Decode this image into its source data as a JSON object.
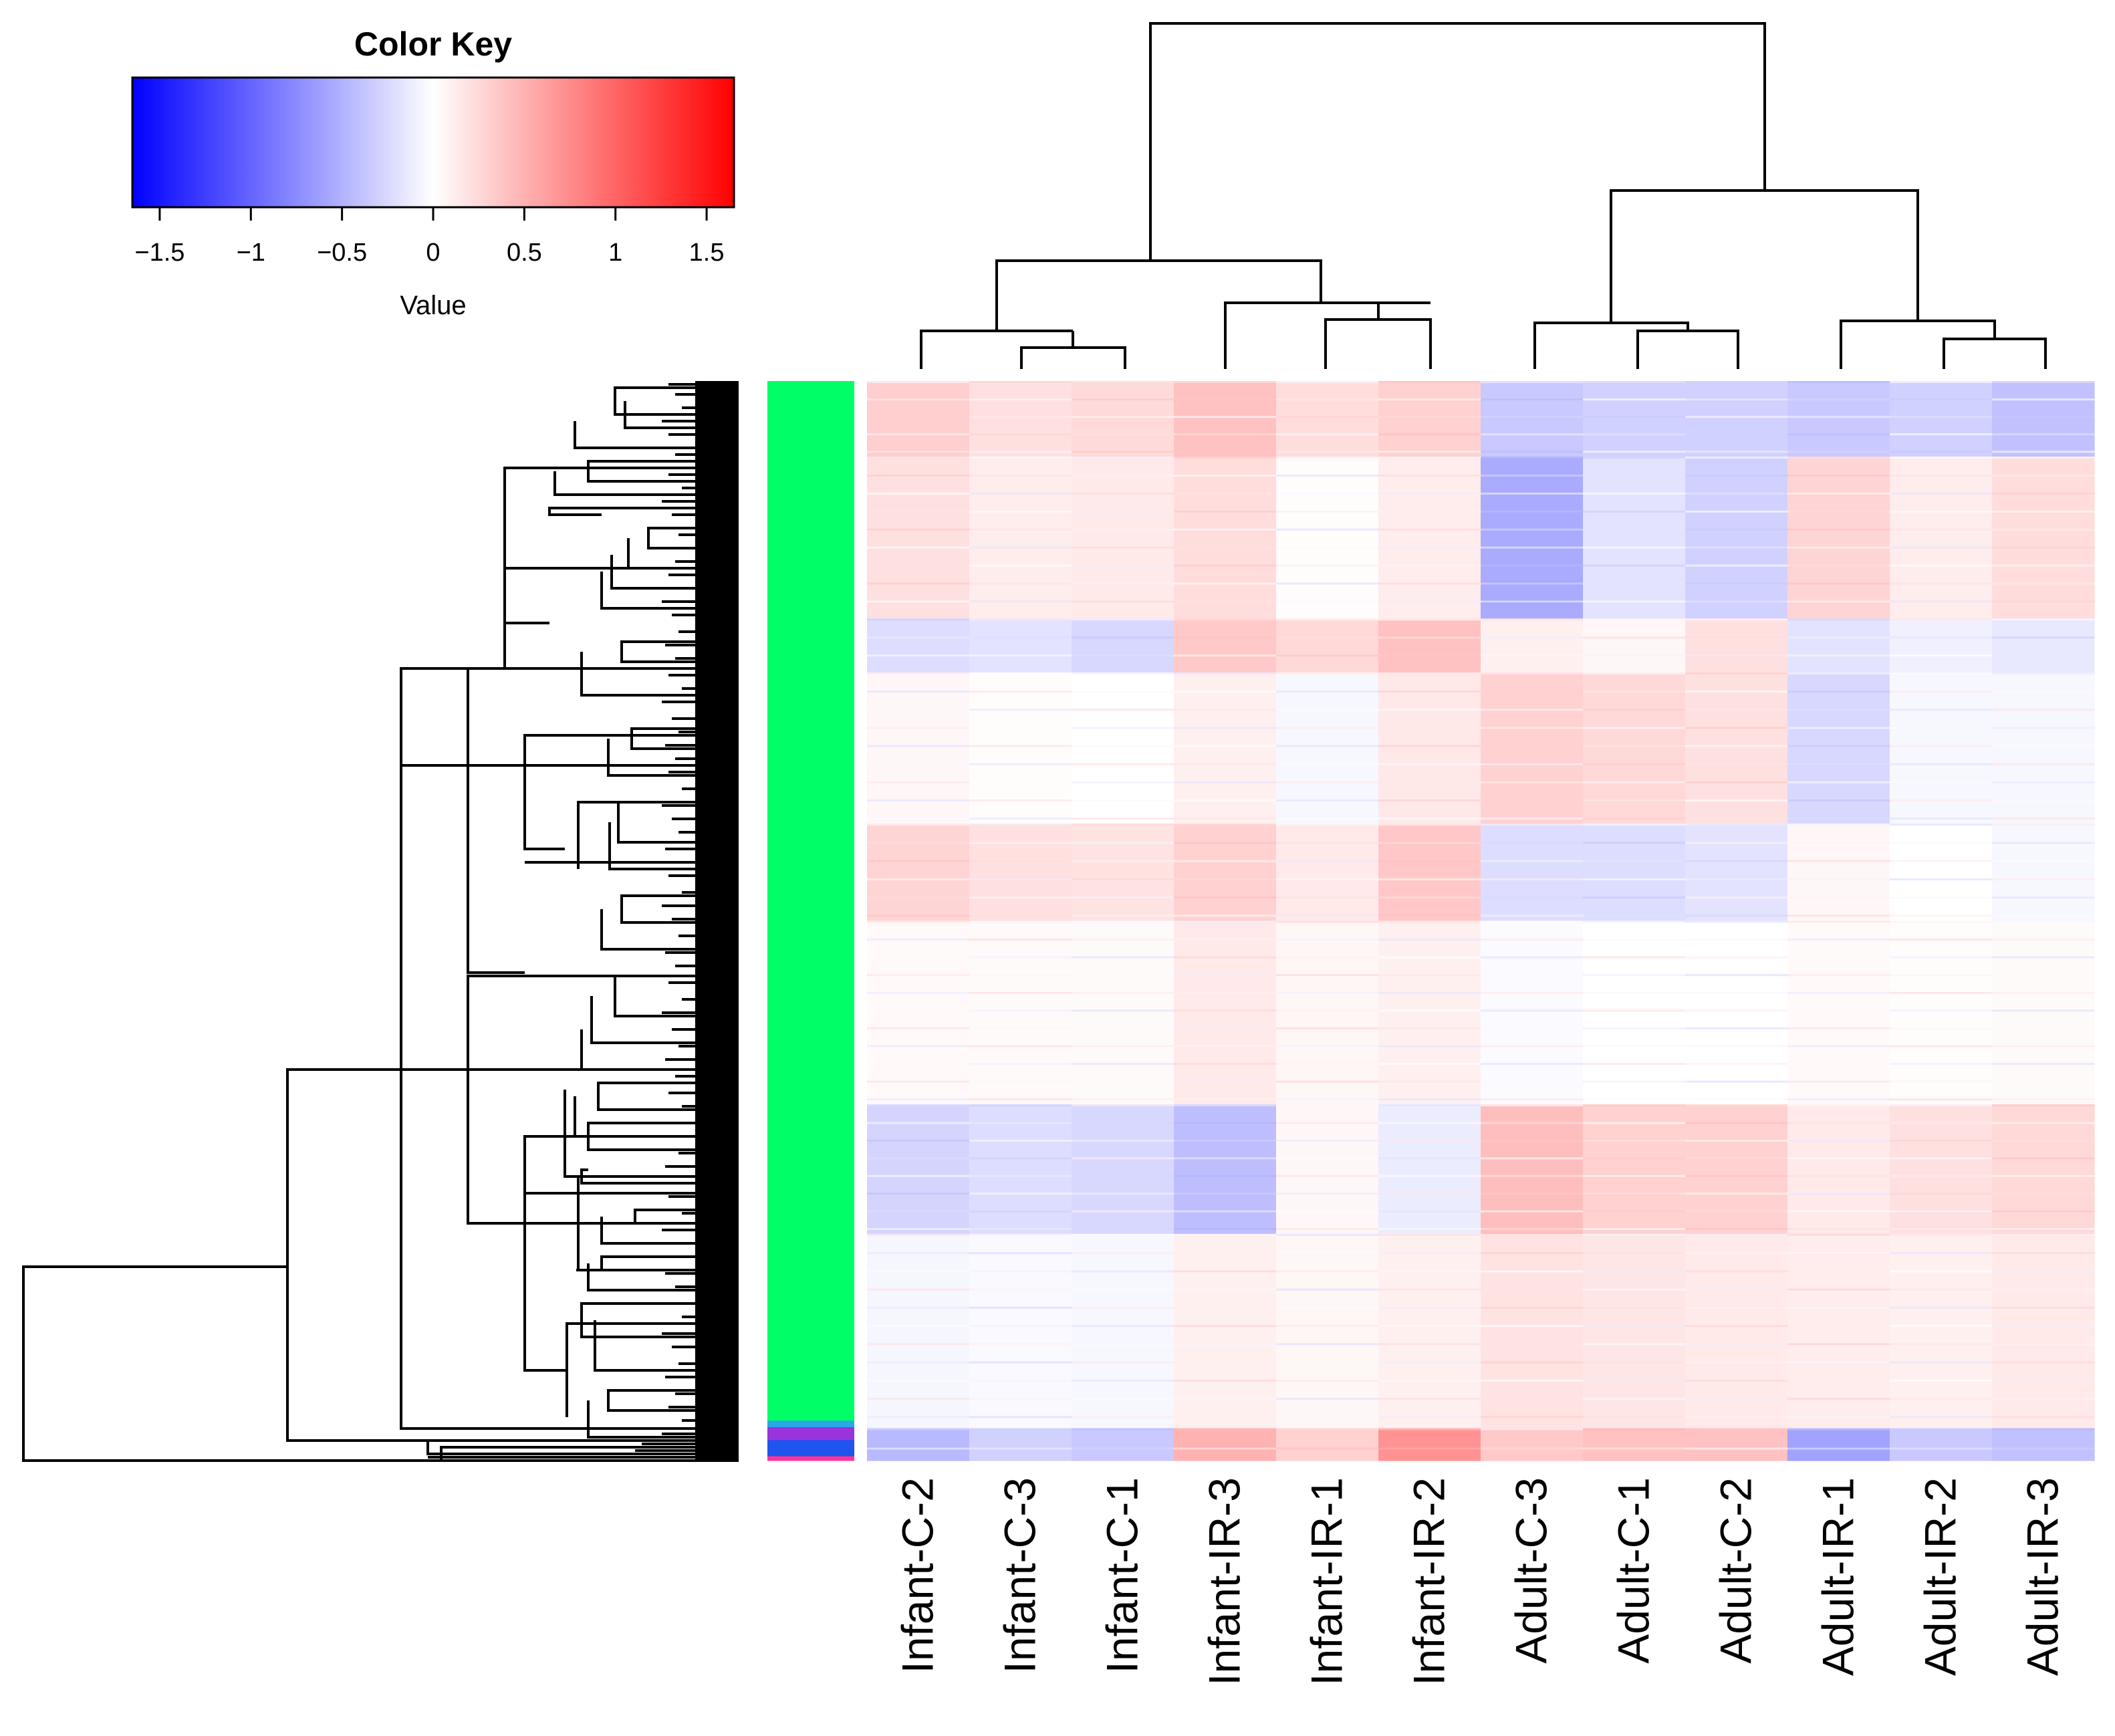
{
  "chart_data": {
    "type": "heatmap",
    "color_key": {
      "title": "Color Key",
      "xlabel": "Value",
      "range": [
        -1.65,
        1.65
      ],
      "ticks": [
        -1.5,
        -1,
        -0.5,
        0,
        0.5,
        1,
        1.5
      ],
      "tick_labels": [
        "−1.5",
        "−1",
        "−0.5",
        "0",
        "0.5",
        "1",
        "1.5"
      ],
      "low_color": "#0000ff",
      "mid_color": "#ffffff",
      "high_color": "#ff0000"
    },
    "columns": [
      "Infant-C-2",
      "Infant-C-3",
      "Infant-C-1",
      "Infant-IR-3",
      "Infant-IR-1",
      "Infant-IR-2",
      "Adult-C-3",
      "Adult-C-1",
      "Adult-C-2",
      "Adult-IR-1",
      "Adult-IR-2",
      "Adult-IR-3"
    ],
    "row_cluster_colors": [
      {
        "cluster": 1,
        "color": "#00ff66",
        "fraction": 0.963
      },
      {
        "cluster": 2,
        "color": "#2aa7e6",
        "fraction": 0.006
      },
      {
        "cluster": 3,
        "color": "#9933dd",
        "fraction": 0.012
      },
      {
        "cluster": 4,
        "color": "#1f55ee",
        "fraction": 0.015
      },
      {
        "cluster": 5,
        "color": "#ff3399",
        "fraction": 0.004
      }
    ],
    "row_blocks": [
      {
        "fraction": 0.07,
        "values": [
          0.32,
          0.2,
          0.24,
          0.4,
          0.22,
          0.3,
          -0.35,
          -0.3,
          -0.3,
          -0.35,
          -0.3,
          -0.4
        ]
      },
      {
        "fraction": 0.15,
        "values": [
          0.2,
          0.12,
          0.14,
          0.22,
          0.02,
          0.12,
          -0.55,
          -0.18,
          -0.3,
          0.28,
          0.12,
          0.22
        ]
      },
      {
        "fraction": 0.05,
        "values": [
          -0.22,
          -0.18,
          -0.25,
          0.35,
          0.25,
          0.4,
          0.1,
          0.05,
          0.2,
          -0.18,
          -0.1,
          -0.15
        ]
      },
      {
        "fraction": 0.14,
        "values": [
          0.05,
          0.02,
          0.0,
          0.1,
          -0.05,
          0.15,
          0.3,
          0.25,
          0.2,
          -0.25,
          -0.05,
          -0.05
        ]
      },
      {
        "fraction": 0.09,
        "values": [
          0.28,
          0.2,
          0.18,
          0.3,
          0.14,
          0.36,
          -0.22,
          -0.22,
          -0.18,
          0.05,
          0.0,
          -0.05
        ]
      },
      {
        "fraction": 0.17,
        "values": [
          0.04,
          0.03,
          0.03,
          0.14,
          0.06,
          0.1,
          -0.03,
          0.0,
          0.0,
          0.04,
          0.02,
          0.03
        ]
      },
      {
        "fraction": 0.12,
        "values": [
          -0.28,
          -0.22,
          -0.25,
          -0.42,
          0.05,
          -0.12,
          0.42,
          0.3,
          0.3,
          0.14,
          0.2,
          0.25
        ]
      },
      {
        "fraction": 0.18,
        "values": [
          -0.06,
          -0.04,
          -0.05,
          0.1,
          0.06,
          0.1,
          0.18,
          0.16,
          0.14,
          0.12,
          0.1,
          0.14
        ]
      },
      {
        "fraction": 0.03,
        "values": [
          -0.45,
          -0.3,
          -0.35,
          0.5,
          0.3,
          0.7,
          0.35,
          0.4,
          0.4,
          -0.6,
          -0.35,
          -0.4
        ]
      }
    ]
  }
}
